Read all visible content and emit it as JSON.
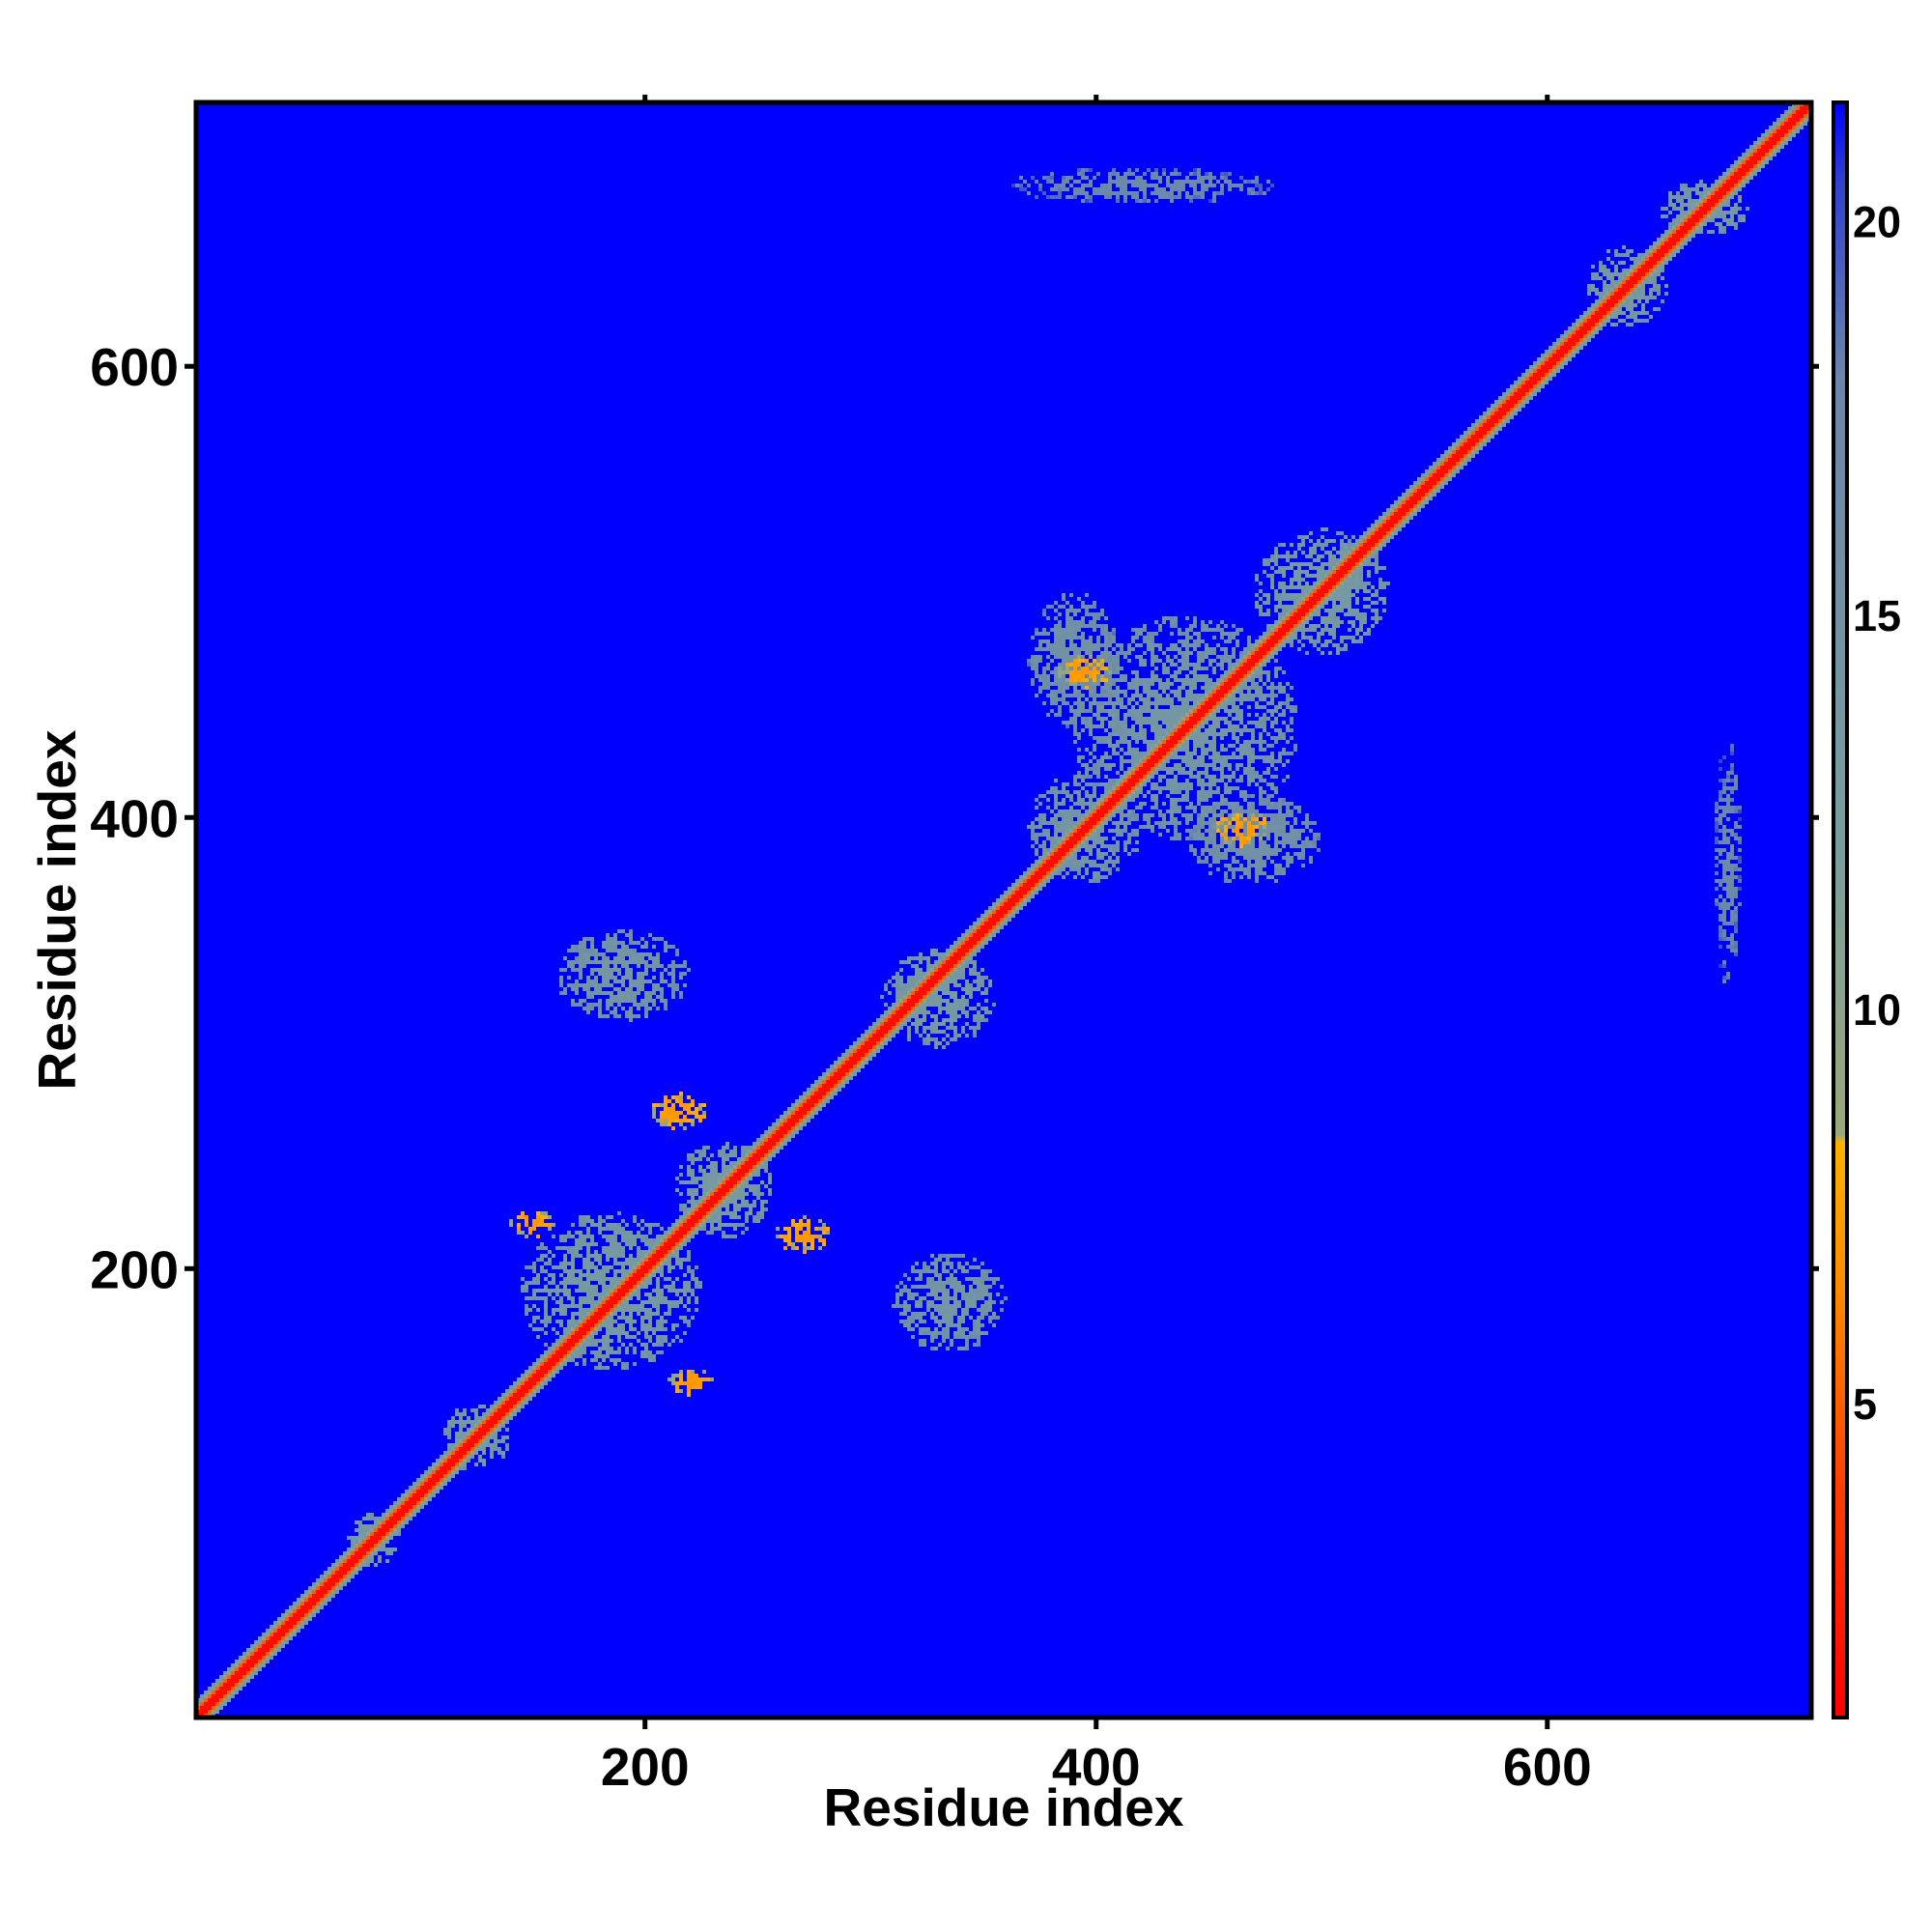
{
  "chart_data": {
    "type": "heatmap",
    "title": "",
    "xlabel": "Residue index",
    "ylabel": "Residue index",
    "x_range": [
      1,
      717
    ],
    "y_range": [
      1,
      717
    ],
    "x_ticks": [
      200,
      400,
      600
    ],
    "y_ticks": [
      200,
      400,
      600
    ],
    "colorbar": {
      "range": [
        1,
        21.5
      ],
      "ticks": [
        5,
        10,
        15,
        20
      ],
      "stops": [
        {
          "value": 1,
          "color": "#ff0000"
        },
        {
          "value": 4,
          "color": "#ff4000"
        },
        {
          "value": 6.5,
          "color": "#ff8c00"
        },
        {
          "value": 8.3,
          "color": "#ffb000"
        },
        {
          "value": 8.4,
          "color": "#9aa87a"
        },
        {
          "value": 12,
          "color": "#7a9e9e"
        },
        {
          "value": 18,
          "color": "#6a86aa"
        },
        {
          "value": 20.5,
          "color": "#3040d0"
        },
        {
          "value": 21.5,
          "color": "#0000ff"
        }
      ]
    },
    "background_value": 21.5,
    "background_color": "#0000ff",
    "diagonal": {
      "value": 1.5,
      "band_value": 8.5,
      "band_halfwidth": 8
    },
    "blobs": [
      {
        "x": 185,
        "y": 190,
        "rx": 40,
        "ry": 35,
        "value": 13
      },
      {
        "x": 190,
        "y": 330,
        "rx": 30,
        "ry": 20,
        "value": 14
      },
      {
        "x": 335,
        "y": 185,
        "rx": 25,
        "ry": 22,
        "value": 14
      },
      {
        "x": 330,
        "y": 320,
        "rx": 25,
        "ry": 22,
        "value": 13
      },
      {
        "x": 235,
        "y": 235,
        "rx": 22,
        "ry": 22,
        "value": 13
      },
      {
        "x": 440,
        "y": 440,
        "rx": 50,
        "ry": 50,
        "value": 14
      },
      {
        "x": 500,
        "y": 500,
        "rx": 30,
        "ry": 28,
        "value": 13
      },
      {
        "x": 635,
        "y": 635,
        "rx": 18,
        "ry": 18,
        "value": 13
      },
      {
        "x": 670,
        "y": 670,
        "rx": 20,
        "ry": 12,
        "value": 13
      },
      {
        "x": 125,
        "y": 125,
        "rx": 15,
        "ry": 15,
        "value": 13
      },
      {
        "x": 80,
        "y": 80,
        "rx": 12,
        "ry": 12,
        "value": 13
      },
      {
        "x": 150,
        "y": 220,
        "rx": 10,
        "ry": 6,
        "value": 7
      },
      {
        "x": 220,
        "y": 150,
        "rx": 10,
        "ry": 6,
        "value": 7
      },
      {
        "x": 215,
        "y": 270,
        "rx": 12,
        "ry": 8,
        "value": 7
      },
      {
        "x": 270,
        "y": 215,
        "rx": 12,
        "ry": 8,
        "value": 7
      },
      {
        "x": 395,
        "y": 465,
        "rx": 12,
        "ry": 8,
        "value": 7
      },
      {
        "x": 465,
        "y": 395,
        "rx": 12,
        "ry": 8,
        "value": 7
      },
      {
        "x": 395,
        "y": 395,
        "rx": 25,
        "ry": 25,
        "value": 14
      },
      {
        "x": 470,
        "y": 390,
        "rx": 30,
        "ry": 20,
        "value": 15
      },
      {
        "x": 390,
        "y": 470,
        "rx": 20,
        "ry": 30,
        "value": 15
      },
      {
        "x": 680,
        "y": 380,
        "rx": 6,
        "ry": 55,
        "value": 17
      },
      {
        "x": 420,
        "y": 680,
        "rx": 60,
        "ry": 8,
        "value": 17
      }
    ]
  }
}
